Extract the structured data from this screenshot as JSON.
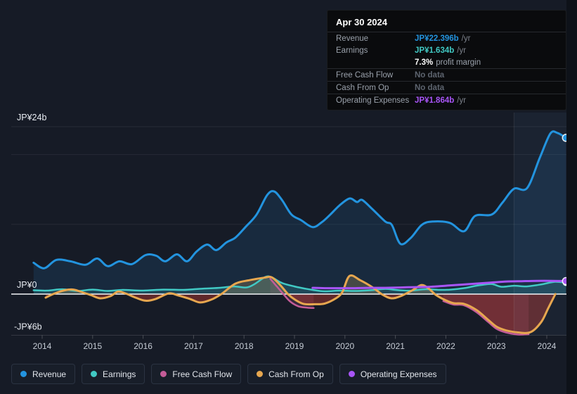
{
  "tooltip": {
    "date": "Apr 30 2024",
    "rows": {
      "revenue": {
        "label": "Revenue",
        "value": "JP¥22.396b",
        "suffix": "/yr",
        "color": "#2394df"
      },
      "earnings": {
        "label": "Earnings",
        "value": "JP¥1.634b",
        "suffix": "/yr",
        "color": "#41c9c4"
      },
      "profit_margin": {
        "value": "7.3%",
        "text": "profit margin"
      },
      "free_cash_flow": {
        "label": "Free Cash Flow",
        "value": "No data",
        "suffix": "",
        "color": ""
      },
      "cash_from_op": {
        "label": "Cash From Op",
        "value": "No data",
        "suffix": "",
        "color": ""
      },
      "operating_expenses": {
        "label": "Operating Expenses",
        "value": "JP¥1.864b",
        "suffix": "/yr",
        "color": "#a855f7"
      }
    }
  },
  "legend": {
    "items": [
      {
        "label": "Revenue",
        "color": "#2394df"
      },
      {
        "label": "Earnings",
        "color": "#41c9c4"
      },
      {
        "label": "Free Cash Flow",
        "color": "#c45c98"
      },
      {
        "label": "Cash From Op",
        "color": "#e7a74f"
      },
      {
        "label": "Operating Expenses",
        "color": "#a855f7"
      }
    ]
  },
  "chart_data": {
    "type": "line",
    "unit": "JP¥ billions per year",
    "x_axis": {
      "ticks": [
        "2014",
        "2015",
        "2016",
        "2017",
        "2018",
        "2019",
        "2020",
        "2021",
        "2022",
        "2023",
        "2024"
      ],
      "min": 2013.55,
      "max": 2024.45
    },
    "y_axis": {
      "labels": [
        {
          "text": "JP¥24b",
          "value": 24
        },
        {
          "text": "JP¥0",
          "value": 0
        },
        {
          "text": "-JP¥6b",
          "value": -6
        }
      ],
      "gridlines": [
        24,
        20,
        10
      ],
      "min": -7,
      "max": 26
    },
    "highlight_band": {
      "from": 2023.35,
      "to": 2024.45
    },
    "series": [
      {
        "name": "Earnings",
        "color": "#41c9c4",
        "line_width": 2.5,
        "fill_positive": "rgba(65,201,196,0.20)",
        "fill_negative": "rgba(65,201,196,0.12)",
        "end_dot": true,
        "dot_r": 4,
        "points": [
          [
            2013.83,
            0.55
          ],
          [
            2014.1,
            0.5
          ],
          [
            2014.4,
            0.7
          ],
          [
            2014.7,
            0.45
          ],
          [
            2015.0,
            0.65
          ],
          [
            2015.3,
            0.45
          ],
          [
            2015.6,
            0.6
          ],
          [
            2016.0,
            0.5
          ],
          [
            2016.4,
            0.65
          ],
          [
            2016.8,
            0.6
          ],
          [
            2017.1,
            0.75
          ],
          [
            2017.5,
            0.9
          ],
          [
            2017.8,
            1.1
          ],
          [
            2018.04,
            0.95
          ],
          [
            2018.2,
            1.4
          ],
          [
            2018.42,
            2.45
          ],
          [
            2018.55,
            2.4
          ],
          [
            2018.75,
            1.6
          ],
          [
            2019.0,
            1.1
          ],
          [
            2019.2,
            0.8
          ],
          [
            2019.36,
            0.6
          ],
          [
            2019.6,
            0.4
          ],
          [
            2019.9,
            0.5
          ],
          [
            2020.2,
            0.45
          ],
          [
            2020.5,
            0.55
          ],
          [
            2020.8,
            0.75
          ],
          [
            2021.0,
            0.6
          ],
          [
            2021.3,
            0.5
          ],
          [
            2021.6,
            0.7
          ],
          [
            2021.9,
            0.6
          ],
          [
            2022.1,
            0.65
          ],
          [
            2022.4,
            0.9
          ],
          [
            2022.6,
            1.2
          ],
          [
            2022.9,
            1.45
          ],
          [
            2023.1,
            1.05
          ],
          [
            2023.35,
            1.2
          ],
          [
            2023.6,
            1.1
          ],
          [
            2023.9,
            1.4
          ],
          [
            2024.15,
            1.75
          ],
          [
            2024.38,
            1.634
          ]
        ]
      },
      {
        "name": "Free Cash Flow",
        "color": "#c45c98",
        "line_width": 2.5,
        "fill_positive": "rgba(196,92,152,0.12)",
        "fill_negative": "rgba(196,92,152,0.18)",
        "end_dot": false,
        "segments": [
          [
            [
              2018.52,
              2.2
            ],
            [
              2018.65,
              1.1
            ],
            [
              2018.78,
              0.0
            ],
            [
              2018.92,
              -1.1
            ],
            [
              2019.08,
              -1.75
            ],
            [
              2019.25,
              -1.95
            ],
            [
              2019.38,
              -2.0
            ]
          ],
          [
            [
              2021.95,
              -1.0
            ],
            [
              2022.15,
              -1.5
            ],
            [
              2022.36,
              -1.6
            ],
            [
              2022.61,
              -2.6
            ],
            [
              2022.84,
              -4.0
            ],
            [
              2023.01,
              -5.0
            ],
            [
              2023.19,
              -5.5
            ],
            [
              2023.43,
              -5.8
            ],
            [
              2023.64,
              -5.75
            ]
          ]
        ]
      },
      {
        "name": "Cash From Op",
        "color": "#e7a74f",
        "line_width": 3,
        "fill_positive": "rgba(231,167,79,0.25)",
        "fill_negative": "rgba(205,60,50,0.40)",
        "end_dot": false,
        "points": [
          [
            2014.07,
            -0.5
          ],
          [
            2014.25,
            0.1
          ],
          [
            2014.45,
            0.55
          ],
          [
            2014.62,
            0.65
          ],
          [
            2014.82,
            0.2
          ],
          [
            2014.97,
            -0.15
          ],
          [
            2015.15,
            -0.6
          ],
          [
            2015.35,
            -0.3
          ],
          [
            2015.5,
            0.35
          ],
          [
            2015.65,
            0.1
          ],
          [
            2015.85,
            -0.5
          ],
          [
            2016.05,
            -0.95
          ],
          [
            2016.25,
            -0.7
          ],
          [
            2016.51,
            0.1
          ],
          [
            2016.7,
            -0.2
          ],
          [
            2016.93,
            -0.7
          ],
          [
            2017.13,
            -1.2
          ],
          [
            2017.35,
            -0.8
          ],
          [
            2017.55,
            0.0
          ],
          [
            2017.83,
            1.5
          ],
          [
            2018.11,
            2.0
          ],
          [
            2018.4,
            2.35
          ],
          [
            2018.55,
            2.4
          ],
          [
            2018.73,
            1.2
          ],
          [
            2018.87,
            0.0
          ],
          [
            2019.01,
            -0.8
          ],
          [
            2019.18,
            -1.4
          ],
          [
            2019.4,
            -1.45
          ],
          [
            2019.6,
            -1.35
          ],
          [
            2019.82,
            -0.6
          ],
          [
            2019.95,
            0.3
          ],
          [
            2020.09,
            2.6
          ],
          [
            2020.3,
            2.0
          ],
          [
            2020.54,
            1.0
          ],
          [
            2020.75,
            -0.1
          ],
          [
            2020.92,
            -0.6
          ],
          [
            2021.1,
            -0.3
          ],
          [
            2021.35,
            0.6
          ],
          [
            2021.52,
            1.3
          ],
          [
            2021.66,
            0.8
          ],
          [
            2021.8,
            -0.1
          ],
          [
            2021.97,
            -0.8
          ],
          [
            2022.15,
            -1.3
          ],
          [
            2022.36,
            -1.4
          ],
          [
            2022.61,
            -2.3
          ],
          [
            2022.84,
            -3.7
          ],
          [
            2023.01,
            -4.7
          ],
          [
            2023.19,
            -5.2
          ],
          [
            2023.43,
            -5.5
          ],
          [
            2023.68,
            -5.45
          ],
          [
            2023.89,
            -4.0
          ],
          [
            2024.03,
            -2.0
          ],
          [
            2024.17,
            0.0
          ]
        ]
      },
      {
        "name": "Operating Expenses",
        "color": "#a855f7",
        "line_width": 3,
        "end_dot": true,
        "dot_r": 5,
        "points": [
          [
            2019.36,
            0.9
          ],
          [
            2019.6,
            0.85
          ],
          [
            2019.9,
            0.85
          ],
          [
            2020.2,
            0.85
          ],
          [
            2020.5,
            0.9
          ],
          [
            2020.8,
            0.9
          ],
          [
            2021.1,
            0.95
          ],
          [
            2021.4,
            1.0
          ],
          [
            2021.7,
            1.05
          ],
          [
            2022.0,
            1.2
          ],
          [
            2022.3,
            1.35
          ],
          [
            2022.6,
            1.5
          ],
          [
            2022.9,
            1.65
          ],
          [
            2023.2,
            1.8
          ],
          [
            2023.5,
            1.85
          ],
          [
            2023.8,
            1.9
          ],
          [
            2024.1,
            1.9
          ],
          [
            2024.38,
            1.864
          ]
        ]
      },
      {
        "name": "Revenue",
        "color": "#2394df",
        "line_width": 3,
        "fill_positive": "rgba(35,148,223,0.13)",
        "fill_negative": "rgba(35,148,223,0.13)",
        "end_dot": true,
        "dot_r": 5,
        "points": [
          [
            2013.83,
            4.5
          ],
          [
            2014.04,
            3.7
          ],
          [
            2014.28,
            4.9
          ],
          [
            2014.56,
            4.7
          ],
          [
            2014.86,
            4.2
          ],
          [
            2015.09,
            5.1
          ],
          [
            2015.3,
            4.0
          ],
          [
            2015.53,
            4.7
          ],
          [
            2015.78,
            4.3
          ],
          [
            2016.05,
            5.6
          ],
          [
            2016.26,
            5.5
          ],
          [
            2016.44,
            4.7
          ],
          [
            2016.67,
            5.7
          ],
          [
            2016.87,
            4.7
          ],
          [
            2017.06,
            6.1
          ],
          [
            2017.27,
            7.1
          ],
          [
            2017.45,
            6.3
          ],
          [
            2017.65,
            7.4
          ],
          [
            2017.83,
            8.1
          ],
          [
            2018.04,
            9.7
          ],
          [
            2018.25,
            11.4
          ],
          [
            2018.46,
            14.2
          ],
          [
            2018.6,
            14.7
          ],
          [
            2018.76,
            13.4
          ],
          [
            2018.94,
            11.4
          ],
          [
            2019.13,
            10.6
          ],
          [
            2019.36,
            9.6
          ],
          [
            2019.54,
            10.3
          ],
          [
            2019.71,
            11.4
          ],
          [
            2019.89,
            12.7
          ],
          [
            2020.09,
            13.7
          ],
          [
            2020.24,
            13.2
          ],
          [
            2020.34,
            13.5
          ],
          [
            2020.54,
            12.2
          ],
          [
            2020.8,
            10.4
          ],
          [
            2020.93,
            9.9
          ],
          [
            2021.1,
            7.2
          ],
          [
            2021.31,
            8.1
          ],
          [
            2021.52,
            9.9
          ],
          [
            2021.73,
            10.4
          ],
          [
            2022.08,
            10.2
          ],
          [
            2022.36,
            9.0
          ],
          [
            2022.58,
            11.2
          ],
          [
            2022.91,
            11.4
          ],
          [
            2023.12,
            13.1
          ],
          [
            2023.35,
            15.1
          ],
          [
            2023.61,
            15.2
          ],
          [
            2023.86,
            19.5
          ],
          [
            2024.07,
            23.0
          ],
          [
            2024.21,
            23.1
          ],
          [
            2024.38,
            22.396
          ]
        ]
      }
    ]
  }
}
